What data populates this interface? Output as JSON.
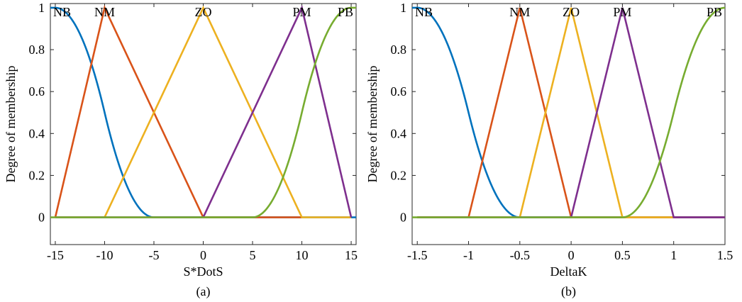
{
  "chart_data": [
    {
      "type": "line",
      "caption": "(a)",
      "xlabel": "S*DotS",
      "ylabel": "Degree of membership",
      "xlim": [
        -15.5,
        15.5
      ],
      "ylim": [
        -0.13,
        1.02
      ],
      "xticks": [
        -15,
        -10,
        -5,
        0,
        5,
        10,
        15
      ],
      "xtick_labels": [
        "-15",
        "-10",
        "-5",
        "0",
        "5",
        "10",
        "15"
      ],
      "yticks": [
        0,
        0.2,
        0.4,
        0.6,
        0.8,
        1
      ],
      "ytick_labels": [
        "0",
        "0.2",
        "0.4",
        "0.6",
        "0.8",
        "1"
      ],
      "grid": false,
      "series": [
        {
          "name": "NB",
          "color": "#0072BD",
          "shape": "z",
          "params": [
            -15,
            -5
          ],
          "points": [
            [
              -15,
              1
            ],
            [
              -12.5,
              0.875
            ],
            [
              -10,
              0.5
            ],
            [
              -7.5,
              0.125
            ],
            [
              -5,
              0
            ],
            [
              15,
              0
            ]
          ]
        },
        {
          "name": "NM",
          "color": "#D95319",
          "shape": "tri",
          "points": [
            [
              -15,
              0
            ],
            [
              -10,
              1
            ],
            [
              0,
              0
            ],
            [
              10,
              0
            ]
          ]
        },
        {
          "name": "ZO",
          "color": "#EDB120",
          "shape": "tri",
          "points": [
            [
              -15,
              0
            ],
            [
              -10,
              0
            ],
            [
              0,
              1
            ],
            [
              10,
              0
            ],
            [
              15,
              0
            ]
          ]
        },
        {
          "name": "PM",
          "color": "#7E2F8E",
          "shape": "tri",
          "points": [
            [
              -15,
              0
            ],
            [
              0,
              0
            ],
            [
              10,
              1
            ],
            [
              15,
              0
            ]
          ]
        },
        {
          "name": "PB",
          "color": "#77AC30",
          "shape": "s",
          "params": [
            5,
            15
          ],
          "points": [
            [
              -15,
              0
            ],
            [
              5,
              0
            ],
            [
              7.5,
              0.125
            ],
            [
              10,
              0.5
            ],
            [
              12.5,
              0.875
            ],
            [
              15,
              1
            ]
          ]
        }
      ]
    },
    {
      "type": "line",
      "caption": "(b)",
      "xlabel": "DeltaK",
      "ylabel": "Degree of membership",
      "xlim": [
        -1.55,
        1.5
      ],
      "ylim": [
        -0.13,
        1.02
      ],
      "xticks": [
        -1.5,
        -1,
        -0.5,
        0,
        0.5,
        1,
        1.5
      ],
      "xtick_labels": [
        "-1.5",
        "-1",
        "-0.5",
        "0",
        "0.5",
        "1",
        "1.5"
      ],
      "yticks": [
        0,
        0.2,
        0.4,
        0.6,
        0.8,
        1
      ],
      "ytick_labels": [
        "0",
        "0.2",
        "0.4",
        "0.6",
        "0.8",
        "1"
      ],
      "grid": false,
      "series": [
        {
          "name": "NB",
          "color": "#0072BD",
          "shape": "z",
          "params": [
            -1.5,
            -0.5
          ],
          "points": [
            [
              -1.5,
              1
            ],
            [
              -1.25,
              0.875
            ],
            [
              -1,
              0.5
            ],
            [
              -0.75,
              0.125
            ],
            [
              -0.5,
              0
            ],
            [
              1.5,
              0
            ]
          ]
        },
        {
          "name": "NM",
          "color": "#D95319",
          "shape": "tri",
          "points": [
            [
              -1.5,
              0
            ],
            [
              -1,
              0
            ],
            [
              -0.5,
              1
            ],
            [
              0,
              0
            ],
            [
              1.5,
              0
            ]
          ]
        },
        {
          "name": "ZO",
          "color": "#EDB120",
          "shape": "tri",
          "points": [
            [
              -1.5,
              0
            ],
            [
              -0.5,
              0
            ],
            [
              0,
              1
            ],
            [
              0.5,
              0
            ],
            [
              1,
              0
            ]
          ]
        },
        {
          "name": "PM",
          "color": "#7E2F8E",
          "shape": "tri",
          "points": [
            [
              -1.5,
              0
            ],
            [
              0,
              0
            ],
            [
              0.5,
              1
            ],
            [
              1,
              0
            ],
            [
              1.5,
              0
            ]
          ]
        },
        {
          "name": "PB",
          "color": "#77AC30",
          "shape": "s",
          "params": [
            0.5,
            1.5
          ],
          "points": [
            [
              -1.5,
              0
            ],
            [
              0.5,
              0
            ],
            [
              0.75,
              0.125
            ],
            [
              1,
              0.5
            ],
            [
              1.25,
              0.875
            ],
            [
              1.5,
              1
            ]
          ]
        }
      ]
    }
  ]
}
